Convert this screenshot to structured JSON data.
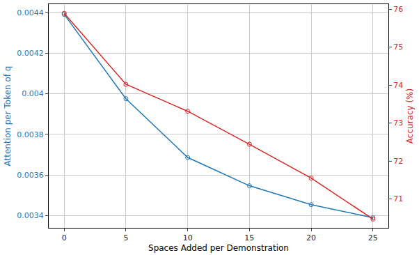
{
  "chart_data": {
    "type": "line",
    "x_label": "Spaces Added per Demonstration",
    "y_label": "Attention per Token of q",
    "y2_label": "Accuracy (%)",
    "x": [
      0,
      5,
      10,
      15,
      20,
      25
    ],
    "series": [
      {
        "name": "Attention per Token of q",
        "color": "#1f77b4",
        "marker": "circle-open",
        "values": [
          0.00439,
          0.003975,
          0.003686,
          0.003547,
          0.003454,
          0.00339
        ]
      },
      {
        "name": "Accuracy (%)",
        "color": "#d62728",
        "marker": "circle-open",
        "axis": "y2",
        "values": [
          75.89,
          74.02,
          73.31,
          72.44,
          71.55,
          70.47
        ]
      }
    ],
    "xlim": [
      -1.25,
      26.25
    ],
    "xticks": [
      0,
      5,
      10,
      15,
      20,
      25
    ],
    "ylim": [
      0.00334,
      0.00444
    ],
    "yticks": [
      0.0034,
      0.0036,
      0.0038,
      0.004,
      0.0042,
      0.0044
    ],
    "y2lim": [
      70.24,
      76.13
    ],
    "y2ticks": [
      71,
      72,
      73,
      74,
      75,
      76
    ],
    "grid": true
  }
}
